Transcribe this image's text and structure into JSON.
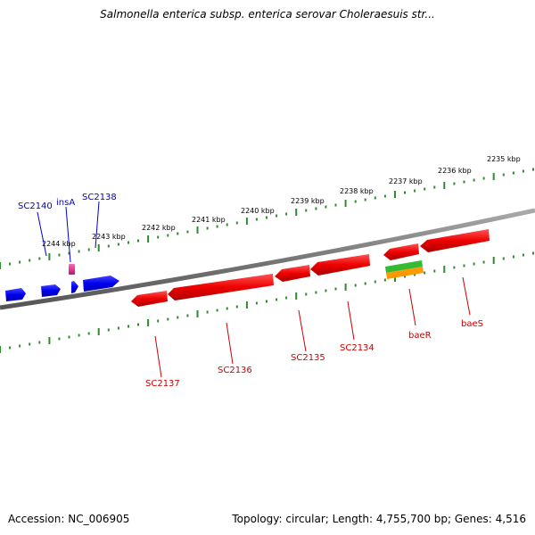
{
  "title": "Salmonella enterica subsp. enterica serovar Choleraesuis str...",
  "footer": {
    "accession": "Accession: NC_006905",
    "summary": "Topology: circular; Length: 4,755,700 bp; Genes: 4,516"
  },
  "scale_labels": [
    "2235 kbp",
    "2236 kbp",
    "2237 kbp",
    "2238 kbp",
    "2239 kbp",
    "2240 kbp",
    "2241 kbp",
    "2242 kbp",
    "2243 kbp",
    "2244 kbp"
  ],
  "genes": [
    {
      "label": "SC2140",
      "strand": "+",
      "color": "#0000cc"
    },
    {
      "label": "insA",
      "strand": "+",
      "color": "#0000cc"
    },
    {
      "label": "SC2138",
      "strand": "+",
      "color": "#0000cc"
    },
    {
      "label": "SC2137",
      "strand": "-",
      "color": "#cc0000"
    },
    {
      "label": "SC2136",
      "strand": "-",
      "color": "#cc0000"
    },
    {
      "label": "SC2135",
      "strand": "-",
      "color": "#cc0000"
    },
    {
      "label": "SC2134",
      "strand": "-",
      "color": "#cc0000"
    },
    {
      "label": "baeR",
      "strand": "-",
      "color": "#cc0000"
    },
    {
      "label": "baeS",
      "strand": "-",
      "color": "#cc0000"
    }
  ],
  "colors": {
    "backbone": "#777777",
    "ticks": "#2e8b2e",
    "forward_gene": "#0000ee",
    "reverse_gene": "#ee0000",
    "insertion_element": "#e0208a",
    "rna_green": "#33bb33",
    "rna_orange": "#ff9900"
  }
}
